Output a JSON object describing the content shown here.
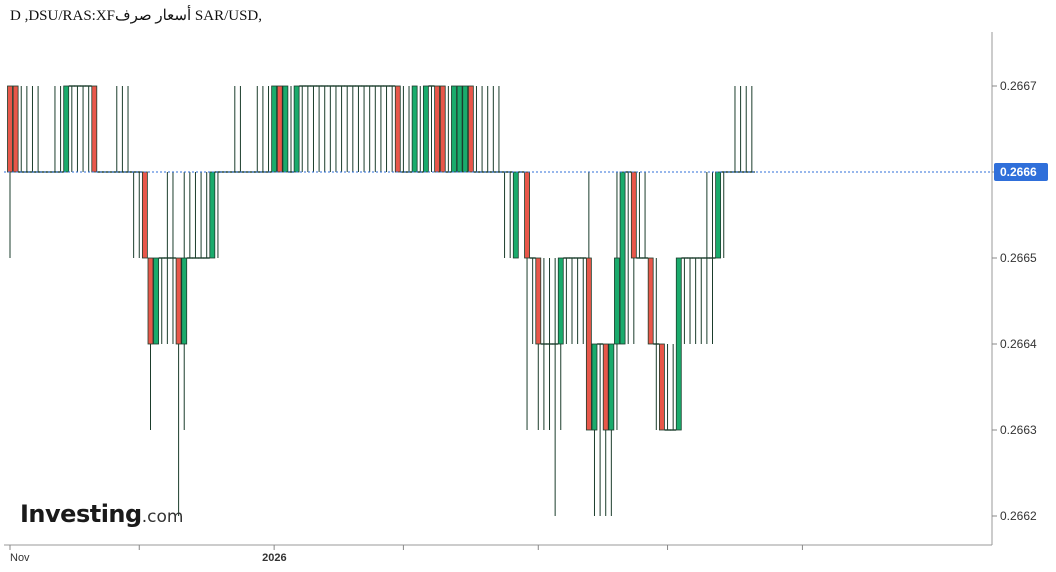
{
  "title": "D ,DSU/RAS:XFأسعار صرف SAR/USD,",
  "logo": {
    "brand": "Investing",
    "suffix": ".com"
  },
  "colors": {
    "up": "#1aab6c",
    "down": "#e8574a",
    "wick": "#1b3d2c",
    "price_line": "#2f6fda",
    "badge": "#2f6fda",
    "axis": "#888888"
  },
  "chart_data": {
    "type": "candlestick",
    "interval": "D",
    "symbol": "SAR/USD",
    "y_range": [
      0.26615,
      0.26674
    ],
    "y_ticks": [
      "0.2667",
      "0.2666",
      "0.2665",
      "0.2664",
      "0.2663",
      "0.2662"
    ],
    "y_tick_values": [
      0.2667,
      0.2666,
      0.2665,
      0.2664,
      0.2663,
      0.2662
    ],
    "x_ticks": [
      {
        "label": "Nov",
        "index": 0,
        "bold": false
      },
      {
        "label": "",
        "index": 23,
        "bold": false
      },
      {
        "label": "2026",
        "index": 47,
        "bold": true
      },
      {
        "label": "",
        "index": 70,
        "bold": false
      },
      {
        "label": "",
        "index": 94,
        "bold": false
      },
      {
        "label": "",
        "index": 117,
        "bold": false
      },
      {
        "label": "",
        "index": 141,
        "bold": false
      }
    ],
    "current_price": "0.2666",
    "current_value": 0.2666,
    "candles": [
      [
        0.2667,
        0.2667,
        0.2665,
        0.2666
      ],
      [
        0.2667,
        0.2667,
        0.2666,
        0.2666
      ],
      [
        0.2666,
        0.2667,
        0.2666,
        0.2666
      ],
      [
        0.2666,
        0.2667,
        0.2666,
        0.2666
      ],
      [
        0.2666,
        0.2667,
        0.2666,
        0.2666
      ],
      [
        0.2666,
        0.2667,
        0.2666,
        0.2666
      ],
      [
        0.2666,
        0.2666,
        0.2666,
        0.2666
      ],
      [
        0.2666,
        0.2666,
        0.2666,
        0.2666
      ],
      [
        0.2666,
        0.2667,
        0.2666,
        0.2666
      ],
      [
        0.2666,
        0.2667,
        0.2666,
        0.2666
      ],
      [
        0.2666,
        0.2667,
        0.2666,
        0.2667
      ],
      [
        0.2667,
        0.2667,
        0.2666,
        0.2667
      ],
      [
        0.2667,
        0.2667,
        0.2666,
        0.2667
      ],
      [
        0.2667,
        0.2667,
        0.2666,
        0.2667
      ],
      [
        0.2667,
        0.2667,
        0.2666,
        0.2667
      ],
      [
        0.2667,
        0.2667,
        0.2666,
        0.2666
      ],
      [
        0.2666,
        0.2666,
        0.2666,
        0.2666
      ],
      [
        0.2666,
        0.2666,
        0.2666,
        0.2666
      ],
      [
        0.2666,
        0.2666,
        0.2666,
        0.2666
      ],
      [
        0.2666,
        0.2667,
        0.2666,
        0.2666
      ],
      [
        0.2666,
        0.2667,
        0.2666,
        0.2666
      ],
      [
        0.2666,
        0.2667,
        0.2666,
        0.2666
      ],
      [
        0.2666,
        0.2666,
        0.2665,
        0.2666
      ],
      [
        0.2666,
        0.2666,
        0.2665,
        0.2666
      ],
      [
        0.2666,
        0.2666,
        0.2665,
        0.2665
      ],
      [
        0.2665,
        0.2665,
        0.2663,
        0.2664
      ],
      [
        0.2664,
        0.2665,
        0.2664,
        0.2665
      ],
      [
        0.2665,
        0.2665,
        0.2664,
        0.2665
      ],
      [
        0.2665,
        0.2666,
        0.2664,
        0.2665
      ],
      [
        0.2665,
        0.2666,
        0.2664,
        0.2665
      ],
      [
        0.2665,
        0.2665,
        0.2662,
        0.2664
      ],
      [
        0.2664,
        0.2666,
        0.2663,
        0.2665
      ],
      [
        0.2665,
        0.2666,
        0.2665,
        0.2665
      ],
      [
        0.2665,
        0.2666,
        0.2665,
        0.2665
      ],
      [
        0.2665,
        0.2666,
        0.2665,
        0.2665
      ],
      [
        0.2665,
        0.2666,
        0.2665,
        0.2665
      ],
      [
        0.2665,
        0.2666,
        0.2665,
        0.2666
      ],
      [
        0.2666,
        0.2666,
        0.2665,
        0.2666
      ],
      [
        0.2666,
        0.2666,
        0.2666,
        0.2666
      ],
      [
        0.2666,
        0.2666,
        0.2666,
        0.2666
      ],
      [
        0.2666,
        0.2667,
        0.2666,
        0.2666
      ],
      [
        0.2666,
        0.2667,
        0.2666,
        0.2666
      ],
      [
        0.2666,
        0.2666,
        0.2666,
        0.2666
      ],
      [
        0.2666,
        0.2666,
        0.2666,
        0.2666
      ],
      [
        0.2666,
        0.2667,
        0.2666,
        0.2666
      ],
      [
        0.2666,
        0.2667,
        0.2666,
        0.2666
      ],
      [
        0.2666,
        0.2667,
        0.2666,
        0.2666
      ],
      [
        0.2666,
        0.2667,
        0.2666,
        0.2667
      ],
      [
        0.2667,
        0.2667,
        0.2666,
        0.2666
      ],
      [
        0.2666,
        0.2667,
        0.2666,
        0.2667
      ],
      [
        0.2666,
        0.2667,
        0.2666,
        0.2666
      ],
      [
        0.2666,
        0.2667,
        0.2666,
        0.2667
      ],
      [
        0.2667,
        0.2667,
        0.2666,
        0.2667
      ],
      [
        0.2667,
        0.2667,
        0.2666,
        0.2667
      ],
      [
        0.2667,
        0.2667,
        0.2666,
        0.2667
      ],
      [
        0.2667,
        0.2667,
        0.2666,
        0.2667
      ],
      [
        0.2667,
        0.2667,
        0.2666,
        0.2667
      ],
      [
        0.2667,
        0.2667,
        0.2666,
        0.2667
      ],
      [
        0.2667,
        0.2667,
        0.2666,
        0.2667
      ],
      [
        0.2667,
        0.2667,
        0.2666,
        0.2667
      ],
      [
        0.2667,
        0.2667,
        0.2666,
        0.2667
      ],
      [
        0.2667,
        0.2667,
        0.2666,
        0.2667
      ],
      [
        0.2667,
        0.2667,
        0.2666,
        0.2667
      ],
      [
        0.2667,
        0.2667,
        0.2666,
        0.2667
      ],
      [
        0.2667,
        0.2667,
        0.2666,
        0.2667
      ],
      [
        0.2667,
        0.2667,
        0.2666,
        0.2667
      ],
      [
        0.2667,
        0.2667,
        0.2666,
        0.2667
      ],
      [
        0.2667,
        0.2667,
        0.2666,
        0.2667
      ],
      [
        0.2667,
        0.2667,
        0.2666,
        0.2667
      ],
      [
        0.2667,
        0.2667,
        0.2666,
        0.2666
      ],
      [
        0.2666,
        0.2667,
        0.2666,
        0.2666
      ],
      [
        0.2666,
        0.2667,
        0.2666,
        0.2666
      ],
      [
        0.2666,
        0.2667,
        0.2666,
        0.2667
      ],
      [
        0.2666,
        0.2667,
        0.2666,
        0.2666
      ],
      [
        0.2666,
        0.2667,
        0.2666,
        0.2667
      ],
      [
        0.2667,
        0.2667,
        0.2666,
        0.2667
      ],
      [
        0.2667,
        0.2667,
        0.2666,
        0.2666
      ],
      [
        0.2667,
        0.2667,
        0.2666,
        0.2666
      ],
      [
        0.2666,
        0.2667,
        0.2666,
        0.2666
      ],
      [
        0.2666,
        0.2667,
        0.2666,
        0.2667
      ],
      [
        0.2666,
        0.2667,
        0.2666,
        0.2667
      ],
      [
        0.2666,
        0.2667,
        0.2666,
        0.2667
      ],
      [
        0.2667,
        0.2667,
        0.2666,
        0.2666
      ],
      [
        0.2666,
        0.2667,
        0.2666,
        0.2666
      ],
      [
        0.2666,
        0.2667,
        0.2666,
        0.2666
      ],
      [
        0.2666,
        0.2667,
        0.2666,
        0.2666
      ],
      [
        0.2666,
        0.2667,
        0.2666,
        0.2666
      ],
      [
        0.2666,
        0.2667,
        0.2666,
        0.2666
      ],
      [
        0.2666,
        0.2666,
        0.2665,
        0.2666
      ],
      [
        0.2666,
        0.2666,
        0.2665,
        0.2666
      ],
      [
        0.2665,
        0.2666,
        0.2665,
        0.2666
      ],
      [
        0.2666,
        0.2666,
        0.2666,
        0.2666
      ],
      [
        0.2666,
        0.2666,
        0.2663,
        0.2665
      ],
      [
        0.2665,
        0.2665,
        0.2664,
        0.2665
      ],
      [
        0.2665,
        0.2665,
        0.2663,
        0.2664
      ],
      [
        0.2664,
        0.2665,
        0.2663,
        0.2664
      ],
      [
        0.2664,
        0.2665,
        0.2663,
        0.2664
      ],
      [
        0.2664,
        0.2665,
        0.2662,
        0.2664
      ],
      [
        0.2664,
        0.2665,
        0.2663,
        0.2665
      ],
      [
        0.2665,
        0.2665,
        0.2664,
        0.2665
      ],
      [
        0.2665,
        0.2665,
        0.2664,
        0.2665
      ],
      [
        0.2665,
        0.2665,
        0.2664,
        0.2665
      ],
      [
        0.2665,
        0.2665,
        0.2664,
        0.2665
      ],
      [
        0.2665,
        0.2666,
        0.2663,
        0.2663
      ],
      [
        0.2663,
        0.2664,
        0.2662,
        0.2664
      ],
      [
        0.2664,
        0.2664,
        0.2662,
        0.2664
      ],
      [
        0.2664,
        0.2664,
        0.2662,
        0.2663
      ],
      [
        0.2663,
        0.2664,
        0.2662,
        0.2664
      ],
      [
        0.2664,
        0.2666,
        0.2663,
        0.2665
      ],
      [
        0.2664,
        0.2666,
        0.2664,
        0.2666
      ],
      [
        0.2666,
        0.2666,
        0.2664,
        0.2666
      ],
      [
        0.2666,
        0.2666,
        0.2664,
        0.2665
      ],
      [
        0.2665,
        0.2666,
        0.2665,
        0.2665
      ],
      [
        0.2665,
        0.2666,
        0.2665,
        0.2665
      ],
      [
        0.2665,
        0.2665,
        0.2664,
        0.2664
      ],
      [
        0.2664,
        0.2665,
        0.2663,
        0.2664
      ],
      [
        0.2664,
        0.2664,
        0.2663,
        0.2663
      ],
      [
        0.2663,
        0.2664,
        0.2663,
        0.2663
      ],
      [
        0.2663,
        0.2664,
        0.2663,
        0.2663
      ],
      [
        0.2663,
        0.2665,
        0.2663,
        0.2665
      ],
      [
        0.2665,
        0.2665,
        0.2664,
        0.2665
      ],
      [
        0.2665,
        0.2665,
        0.2664,
        0.2665
      ],
      [
        0.2665,
        0.2665,
        0.2664,
        0.2665
      ],
      [
        0.2665,
        0.2665,
        0.2664,
        0.2665
      ],
      [
        0.2665,
        0.2666,
        0.2664,
        0.2665
      ],
      [
        0.2665,
        0.2666,
        0.2664,
        0.2665
      ],
      [
        0.2665,
        0.2666,
        0.2665,
        0.2666
      ],
      [
        0.2666,
        0.2666,
        0.2665,
        0.2666
      ],
      [
        0.2666,
        0.2666,
        0.2666,
        0.2666
      ],
      [
        0.2666,
        0.2667,
        0.2666,
        0.2666
      ],
      [
        0.2666,
        0.2667,
        0.2666,
        0.2666
      ],
      [
        0.2666,
        0.2667,
        0.2666,
        0.2666
      ],
      [
        0.2666,
        0.2667,
        0.2666,
        0.2666
      ]
    ]
  }
}
